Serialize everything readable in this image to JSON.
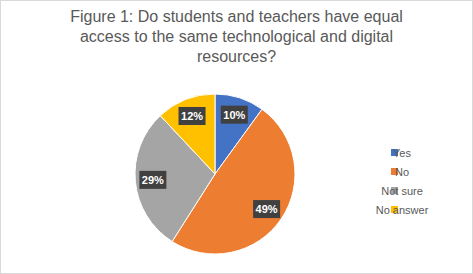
{
  "chart_data": {
    "type": "pie",
    "title": "Figure 1: Do students and teachers have equal access to the same technological and digital resources?",
    "categories": [
      "Yes",
      "No",
      "Not sure",
      "No answer"
    ],
    "values": [
      10,
      49,
      29,
      12
    ],
    "value_labels": [
      "10%",
      "49%",
      "29%",
      "12%"
    ],
    "colors": [
      "#4472c4",
      "#ed7d31",
      "#a5a5a5",
      "#ffc000"
    ],
    "data_labels": true,
    "legend": "right"
  }
}
